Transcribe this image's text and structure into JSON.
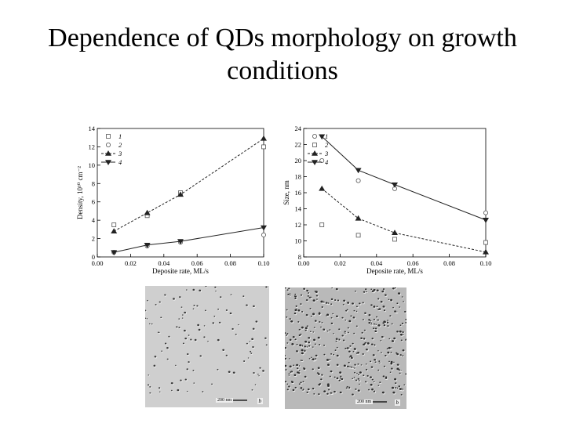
{
  "slide": {
    "title_line1": "Dependence of QDs morphology on growth",
    "title_line2": "conditions"
  },
  "chart_data": [
    {
      "type": "scatter",
      "xlabel": "Deposite rate, ML/s",
      "ylabel": "Density, 10¹⁰ cm⁻²",
      "xlim": [
        0.0,
        0.1
      ],
      "ylim": [
        0,
        14
      ],
      "x_ticks": [
        "0.00",
        "0.02",
        "0.04",
        "0.06",
        "0.08",
        "0.10"
      ],
      "y_ticks": [
        "0",
        "2",
        "4",
        "6",
        "8",
        "10",
        "12",
        "14"
      ],
      "series": [
        {
          "name": "1",
          "marker": "square-open",
          "line": "none",
          "x": [
            0.01,
            0.03,
            0.05,
            0.1
          ],
          "y": [
            3.5,
            4.5,
            7.0,
            12.0
          ]
        },
        {
          "name": "2",
          "marker": "circle-open",
          "line": "none",
          "x": [
            0.01,
            0.03,
            0.05,
            0.1
          ],
          "y": [
            0.5,
            1.2,
            1.6,
            2.4
          ]
        },
        {
          "name": "3",
          "marker": "triangle-up",
          "line": "dashed",
          "x": [
            0.01,
            0.03,
            0.05,
            0.1
          ],
          "y": [
            2.8,
            4.8,
            6.8,
            12.9
          ]
        },
        {
          "name": "4",
          "marker": "triangle-down",
          "line": "solid",
          "x": [
            0.01,
            0.03,
            0.05,
            0.1
          ],
          "y": [
            0.5,
            1.3,
            1.7,
            3.2
          ]
        }
      ]
    },
    {
      "type": "scatter",
      "xlabel": "Deposite rate, ML/s",
      "ylabel": "Size, nm",
      "xlim": [
        0.0,
        0.1
      ],
      "ylim": [
        8,
        24
      ],
      "x_ticks": [
        "0.00",
        "0.02",
        "0.04",
        "0.06",
        "0.08",
        "0.10"
      ],
      "y_ticks": [
        "8",
        "10",
        "12",
        "14",
        "16",
        "18",
        "20",
        "22",
        "24"
      ],
      "series": [
        {
          "name": "1",
          "marker": "circle-open",
          "line": "none",
          "x": [
            0.01,
            0.03,
            0.05,
            0.1
          ],
          "y": [
            20.0,
            17.5,
            16.5,
            13.5
          ]
        },
        {
          "name": "2",
          "marker": "square-open",
          "line": "none",
          "x": [
            0.01,
            0.03,
            0.05,
            0.1
          ],
          "y": [
            12.0,
            10.7,
            10.2,
            9.8
          ]
        },
        {
          "name": "3",
          "marker": "triangle-up",
          "line": "dashed",
          "x": [
            0.01,
            0.03,
            0.05,
            0.1
          ],
          "y": [
            16.5,
            12.8,
            11.0,
            8.6
          ]
        },
        {
          "name": "4",
          "marker": "triangle-down",
          "line": "solid",
          "x": [
            0.01,
            0.03,
            0.05,
            0.1
          ],
          "y": [
            23.0,
            18.8,
            17.0,
            12.6
          ]
        }
      ]
    }
  ],
  "micrographs": [
    {
      "scale_label": "200 nm",
      "panel_label": "b"
    },
    {
      "scale_label": "200 nm",
      "panel_label": "b"
    }
  ]
}
